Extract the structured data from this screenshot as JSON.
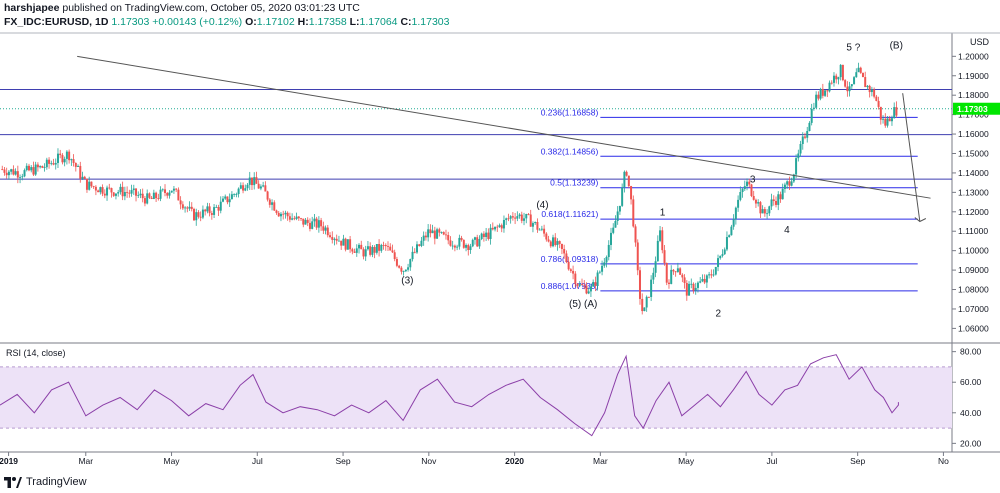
{
  "header": {
    "author": "harshjapee",
    "published_text": "published on TradingView.com, October 05, 2020 03:01:23 UTC",
    "symbol": "FX_IDC:EURUSD, 1D",
    "last": "1.17303",
    "change": "+0.00143 (+0.12%)",
    "o_label": "O:",
    "o": "1.17102",
    "h_label": "H:",
    "h": "1.17358",
    "l_label": "L:",
    "l": "1.17064",
    "c_label": "C:",
    "c": "1.17303"
  },
  "footer": {
    "brand": "TradingView"
  },
  "chart_data": [
    {
      "type": "candlestick",
      "currency_label": "USD",
      "price_axis_ticks": [
        1.2,
        1.19,
        1.18,
        1.17,
        1.16,
        1.15,
        1.14,
        1.13,
        1.12,
        1.11,
        1.1,
        1.09,
        1.08,
        1.07,
        1.06
      ],
      "price_axis_tick_labels": [
        "1.20000",
        "1.19000",
        "1.18000",
        "1.17000",
        "1.16000",
        "1.15000",
        "1.14000",
        "1.13000",
        "1.12000",
        "1.11000",
        "1.10000",
        "1.09000",
        "1.08000",
        "1.07000",
        "1.06000"
      ],
      "ylim": [
        1.053,
        1.212
      ],
      "last_price_label": "1.17303",
      "last_price": 1.17303,
      "x_axis": {
        "range_months": [
          0.0,
          22.2
        ],
        "ticks": [
          {
            "label": "2019",
            "m": 0.2
          },
          {
            "label": "Mar",
            "m": 2.0
          },
          {
            "label": "May",
            "m": 4.0
          },
          {
            "label": "Jul",
            "m": 6.0
          },
          {
            "label": "Sep",
            "m": 8.0
          },
          {
            "label": "Nov",
            "m": 10.0
          },
          {
            "label": "2020",
            "m": 12.0
          },
          {
            "label": "Mar",
            "m": 14.0
          },
          {
            "label": "May",
            "m": 16.0
          },
          {
            "label": "Jul",
            "m": 18.0
          },
          {
            "label": "Sep",
            "m": 20.0
          },
          {
            "label": "No",
            "m": 22.0
          }
        ]
      },
      "price_path": [
        [
          0.0,
          1.142
        ],
        [
          0.5,
          1.14
        ],
        [
          1.0,
          1.143
        ],
        [
          1.6,
          1.15
        ],
        [
          2.0,
          1.134
        ],
        [
          2.5,
          1.131
        ],
        [
          3.0,
          1.13
        ],
        [
          3.5,
          1.126
        ],
        [
          4.0,
          1.132
        ],
        [
          4.5,
          1.118
        ],
        [
          5.0,
          1.121
        ],
        [
          5.5,
          1.13
        ],
        [
          5.8,
          1.137
        ],
        [
          6.1,
          1.132
        ],
        [
          6.5,
          1.12
        ],
        [
          7.0,
          1.115
        ],
        [
          7.5,
          1.113
        ],
        [
          8.0,
          1.104
        ],
        [
          8.5,
          1.099
        ],
        [
          9.0,
          1.102
        ],
        [
          9.4,
          1.09
        ],
        [
          10.0,
          1.11
        ],
        [
          10.5,
          1.105
        ],
        [
          11.0,
          1.103
        ],
        [
          11.5,
          1.11
        ],
        [
          12.0,
          1.119
        ],
        [
          12.4,
          1.115
        ],
        [
          12.8,
          1.106
        ],
        [
          13.1,
          1.1
        ],
        [
          13.5,
          1.082
        ],
        [
          13.8,
          1.08
        ],
        [
          14.0,
          1.09
        ],
        [
          14.3,
          1.11
        ],
        [
          14.5,
          1.13
        ],
        [
          14.6,
          1.143
        ],
        [
          14.75,
          1.12
        ],
        [
          14.9,
          1.08
        ],
        [
          15.0,
          1.066
        ],
        [
          15.2,
          1.085
        ],
        [
          15.4,
          1.11
        ],
        [
          15.55,
          1.084
        ],
        [
          15.8,
          1.093
        ],
        [
          16.0,
          1.079
        ],
        [
          16.2,
          1.082
        ],
        [
          16.5,
          1.085
        ],
        [
          16.7,
          1.092
        ],
        [
          16.8,
          1.097
        ],
        [
          17.0,
          1.11
        ],
        [
          17.2,
          1.125
        ],
        [
          17.4,
          1.135
        ],
        [
          17.6,
          1.128
        ],
        [
          17.8,
          1.118
        ],
        [
          18.0,
          1.125
        ],
        [
          18.2,
          1.128
        ],
        [
          18.5,
          1.14
        ],
        [
          18.8,
          1.162
        ],
        [
          19.0,
          1.178
        ],
        [
          19.2,
          1.182
        ],
        [
          19.4,
          1.188
        ],
        [
          19.6,
          1.193
        ],
        [
          19.8,
          1.181
        ],
        [
          20.0,
          1.192
        ],
        [
          20.2,
          1.185
        ],
        [
          20.4,
          1.18
        ],
        [
          20.55,
          1.168
        ],
        [
          20.65,
          1.165
        ],
        [
          20.8,
          1.171
        ],
        [
          20.95,
          1.173
        ]
      ],
      "horizontal_levels": [
        {
          "price": 1.1829,
          "color": "#3f3fb1"
        },
        {
          "price": 1.1597,
          "color": "#3f3fb1"
        },
        {
          "price": 1.1368,
          "color": "#3f3fb1"
        }
      ],
      "trendlines": [
        {
          "from": [
            1.8,
            1.2
          ],
          "to": [
            21.7,
            1.127
          ],
          "color": "#555555"
        }
      ],
      "projection_arrow": {
        "from": [
          21.05,
          1.181
        ],
        "to": [
          21.45,
          1.115
        ],
        "color": "#555555"
      },
      "fib_levels": [
        {
          "label": "0.236(1.16858)",
          "price": 1.16858
        },
        {
          "label": "0.382(1.14856)",
          "price": 1.14856
        },
        {
          "label": "0.5(1.13239)",
          "price": 1.13239
        },
        {
          "label": "0.618(1.11621)",
          "price": 1.11621
        },
        {
          "label": "0.786(1.09318)",
          "price": 1.09318
        },
        {
          "label": "0.886(1.07930)",
          "price": 1.0793
        }
      ],
      "fib_range_months": [
        14.0,
        21.4
      ],
      "fib_color": "#2a2ae8",
      "wave_labels": [
        {
          "text": "(3)",
          "m": 9.5,
          "price": 1.083
        },
        {
          "text": "(4)",
          "m": 12.65,
          "price": 1.122
        },
        {
          "text": "(5) (A)",
          "m": 13.6,
          "price": 1.071
        },
        {
          "text": "1",
          "m": 15.45,
          "price": 1.118
        },
        {
          "text": "2",
          "m": 16.75,
          "price": 1.066
        },
        {
          "text": "3",
          "m": 17.55,
          "price": 1.135
        },
        {
          "text": "4",
          "m": 18.35,
          "price": 1.109
        },
        {
          "text": "5 ?",
          "m": 19.9,
          "price": 1.203
        },
        {
          "text": "(B)",
          "m": 20.9,
          "price": 1.204
        }
      ]
    },
    {
      "type": "line",
      "title": "RSI (14, close)",
      "ylim": [
        15,
        85
      ],
      "band": [
        30,
        70
      ],
      "ticks": [
        80,
        60,
        40,
        20
      ],
      "tick_labels": [
        "80.00",
        "60.00",
        "40.00",
        "20.00"
      ],
      "line_color": "#8b3fa8",
      "series": [
        [
          0.0,
          45
        ],
        [
          0.4,
          52
        ],
        [
          0.8,
          40
        ],
        [
          1.2,
          55
        ],
        [
          1.6,
          60
        ],
        [
          2.0,
          38
        ],
        [
          2.4,
          45
        ],
        [
          2.8,
          50
        ],
        [
          3.2,
          42
        ],
        [
          3.6,
          55
        ],
        [
          4.0,
          48
        ],
        [
          4.4,
          38
        ],
        [
          4.8,
          46
        ],
        [
          5.2,
          42
        ],
        [
          5.6,
          58
        ],
        [
          5.9,
          65
        ],
        [
          6.2,
          47
        ],
        [
          6.6,
          40
        ],
        [
          7.0,
          44
        ],
        [
          7.4,
          42
        ],
        [
          7.8,
          38
        ],
        [
          8.2,
          45
        ],
        [
          8.6,
          40
        ],
        [
          9.0,
          48
        ],
        [
          9.4,
          35
        ],
        [
          9.8,
          55
        ],
        [
          10.2,
          62
        ],
        [
          10.6,
          47
        ],
        [
          11.0,
          44
        ],
        [
          11.4,
          52
        ],
        [
          11.8,
          58
        ],
        [
          12.2,
          62
        ],
        [
          12.6,
          50
        ],
        [
          13.0,
          42
        ],
        [
          13.4,
          33
        ],
        [
          13.8,
          25
        ],
        [
          14.1,
          40
        ],
        [
          14.4,
          65
        ],
        [
          14.6,
          77
        ],
        [
          14.8,
          38
        ],
        [
          15.0,
          30
        ],
        [
          15.3,
          48
        ],
        [
          15.6,
          60
        ],
        [
          15.9,
          38
        ],
        [
          16.2,
          45
        ],
        [
          16.5,
          52
        ],
        [
          16.8,
          44
        ],
        [
          17.1,
          55
        ],
        [
          17.4,
          67
        ],
        [
          17.7,
          52
        ],
        [
          18.0,
          45
        ],
        [
          18.3,
          55
        ],
        [
          18.6,
          58
        ],
        [
          18.9,
          72
        ],
        [
          19.2,
          76
        ],
        [
          19.5,
          78
        ],
        [
          19.8,
          62
        ],
        [
          20.1,
          70
        ],
        [
          20.4,
          55
        ],
        [
          20.6,
          50
        ],
        [
          20.8,
          40
        ],
        [
          21.0,
          45
        ],
        [
          21.1,
          47
        ]
      ]
    }
  ]
}
